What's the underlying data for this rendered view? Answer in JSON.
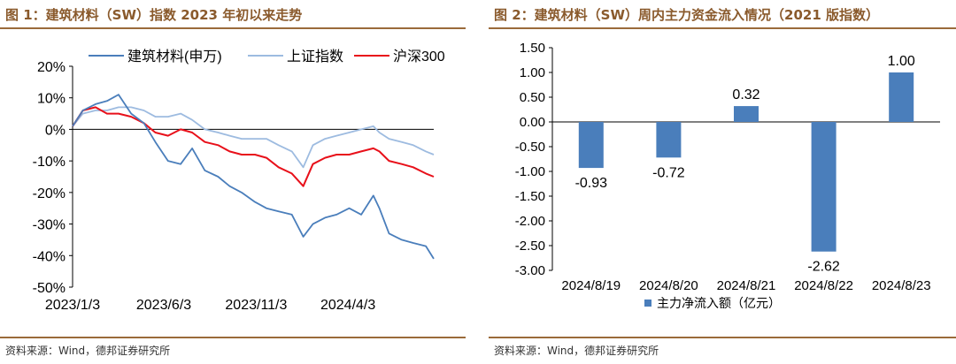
{
  "figures": [
    {
      "title": "图 1：建筑材料（SW）指数 2023 年初以来走势",
      "source": "资料来源：Wind，德邦证券研究所"
    },
    {
      "title": "图 2：建筑材料（SW）周内主力资金流入情况（2021 版指数）",
      "source": "资料来源：Wind，德邦证券研究所"
    }
  ],
  "chart_data": [
    {
      "type": "line",
      "ylim": [
        -50,
        20
      ],
      "yticks": [
        "20%",
        "10%",
        "0%",
        "-10%",
        "-20%",
        "-30%",
        "-40%",
        "-50%"
      ],
      "xticks": [
        "2023/1/3",
        "2023/6/3",
        "2023/11/3",
        "2024/4/3"
      ],
      "legend_position": "top",
      "grid": false,
      "series": [
        {
          "name": "建筑材料(申万)",
          "color": "#4a7ebb",
          "x": [
            "2023-01-03",
            "2023-01-20",
            "2023-02-10",
            "2023-03-01",
            "2023-03-20",
            "2023-04-10",
            "2023-05-01",
            "2023-05-20",
            "2023-06-10",
            "2023-07-01",
            "2023-07-20",
            "2023-08-10",
            "2023-09-01",
            "2023-09-20",
            "2023-10-10",
            "2023-11-01",
            "2023-11-20",
            "2023-12-10",
            "2024-01-01",
            "2024-01-20",
            "2024-02-05",
            "2024-02-25",
            "2024-03-15",
            "2024-04-05",
            "2024-04-25",
            "2024-05-15",
            "2024-05-25",
            "2024-06-10",
            "2024-07-01",
            "2024-07-20",
            "2024-08-10",
            "2024-08-23"
          ],
          "values": [
            1,
            6,
            8,
            9,
            11,
            5,
            2,
            -4,
            -10,
            -11,
            -6,
            -13,
            -15,
            -18,
            -20,
            -23,
            -25,
            -26,
            -27,
            -34,
            -30,
            -28,
            -27,
            -25,
            -27,
            -21,
            -25,
            -33,
            -35,
            -36,
            -37,
            -41
          ]
        },
        {
          "name": "上证指数",
          "color": "#9dbbe0",
          "x": [
            "2023-01-03",
            "2023-01-20",
            "2023-02-10",
            "2023-03-01",
            "2023-03-20",
            "2023-04-10",
            "2023-05-01",
            "2023-05-20",
            "2023-06-10",
            "2023-07-01",
            "2023-07-20",
            "2023-08-10",
            "2023-09-01",
            "2023-09-20",
            "2023-10-10",
            "2023-11-01",
            "2023-11-20",
            "2023-12-10",
            "2024-01-01",
            "2024-01-20",
            "2024-02-05",
            "2024-02-25",
            "2024-03-15",
            "2024-04-05",
            "2024-04-25",
            "2024-05-15",
            "2024-05-25",
            "2024-06-10",
            "2024-07-01",
            "2024-07-20",
            "2024-08-10",
            "2024-08-23"
          ],
          "values": [
            1,
            5,
            6,
            6,
            7,
            7,
            6,
            4,
            4,
            5,
            3,
            0,
            -1,
            -2,
            -3,
            -3,
            -3,
            -5,
            -7,
            -12,
            -5,
            -3,
            -2,
            -1,
            0,
            1,
            -1,
            -3,
            -4,
            -5,
            -7,
            -8
          ]
        },
        {
          "name": "沪深300",
          "color": "#e8101a",
          "x": [
            "2023-01-03",
            "2023-01-20",
            "2023-02-10",
            "2023-03-01",
            "2023-03-20",
            "2023-04-10",
            "2023-05-01",
            "2023-05-20",
            "2023-06-10",
            "2023-07-01",
            "2023-07-20",
            "2023-08-10",
            "2023-09-01",
            "2023-09-20",
            "2023-10-10",
            "2023-11-01",
            "2023-11-20",
            "2023-12-10",
            "2024-01-01",
            "2024-01-20",
            "2024-02-05",
            "2024-02-25",
            "2024-03-15",
            "2024-04-05",
            "2024-04-25",
            "2024-05-15",
            "2024-05-25",
            "2024-06-10",
            "2024-07-01",
            "2024-07-20",
            "2024-08-10",
            "2024-08-23"
          ],
          "values": [
            1,
            6,
            7,
            5,
            5,
            4,
            2,
            -1,
            -2,
            0,
            -1,
            -4,
            -5,
            -7,
            -8,
            -8,
            -9,
            -12,
            -14,
            -18,
            -11,
            -9,
            -8,
            -8,
            -7,
            -6,
            -7,
            -10,
            -11,
            -12,
            -14,
            -15
          ]
        }
      ]
    },
    {
      "type": "bar",
      "categories": [
        "2024/8/19",
        "2024/8/20",
        "2024/8/21",
        "2024/8/22",
        "2024/8/23"
      ],
      "ylim": [
        -3.0,
        1.5
      ],
      "yticks": [
        "1.50",
        "1.00",
        "0.50",
        "0.00",
        "-0.50",
        "-1.00",
        "-1.50",
        "-2.00",
        "-2.50",
        "-3.00"
      ],
      "legend_position": "bottom",
      "grid": false,
      "series": [
        {
          "name": "主力净流入额（亿元）",
          "color": "#4a7ebb",
          "values": [
            -0.93,
            -0.72,
            0.32,
            -2.62,
            1.0
          ],
          "labels": [
            "-0.93",
            "-0.72",
            "0.32",
            "-2.62",
            "1.00"
          ]
        }
      ]
    }
  ]
}
